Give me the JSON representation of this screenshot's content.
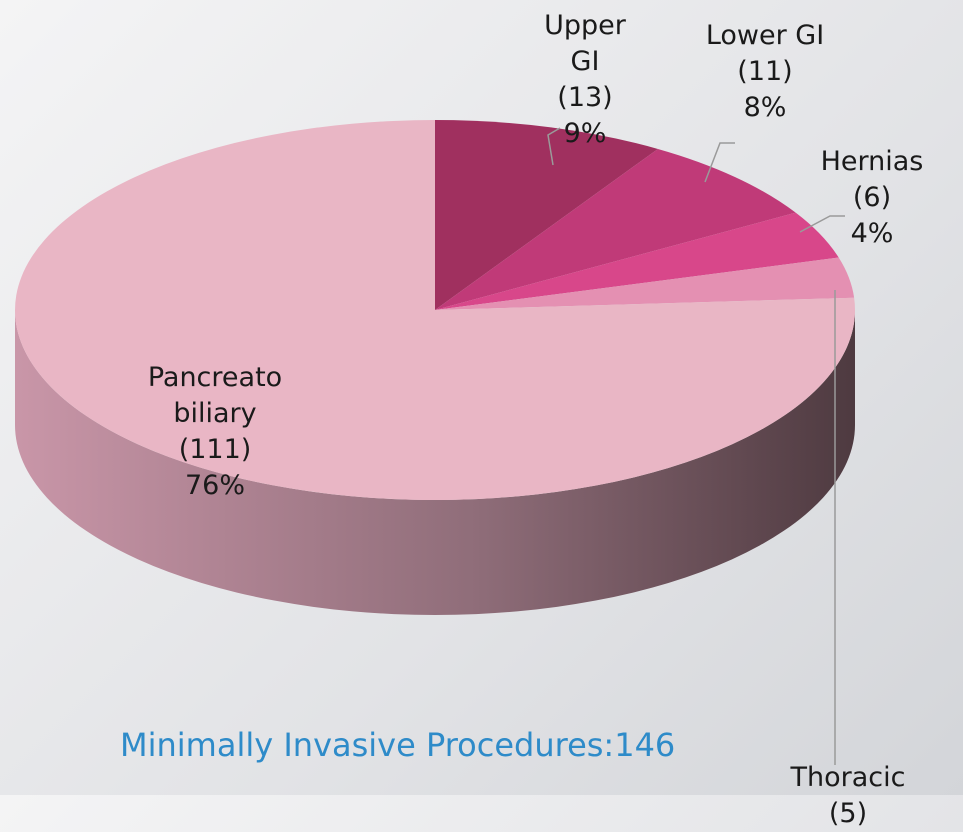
{
  "chart_data": {
    "type": "pie",
    "title": "Minimally Invasive Procedures:146",
    "categories": [
      "Upper GI",
      "Lower GI",
      "Hernias",
      "Thoracic",
      "Pancreato biliary"
    ],
    "values": [
      13,
      11,
      6,
      5,
      111
    ],
    "value_labels": [
      "(13)",
      "(11)",
      "(6)",
      "(5)",
      "(111)"
    ],
    "percent_labels": [
      "9%",
      "8%",
      "4%",
      null,
      "76%"
    ],
    "colors": [
      "#a0305f",
      "#c03a78",
      "#d8478a",
      "#e490b2",
      "#e9b6c5"
    ]
  }
}
